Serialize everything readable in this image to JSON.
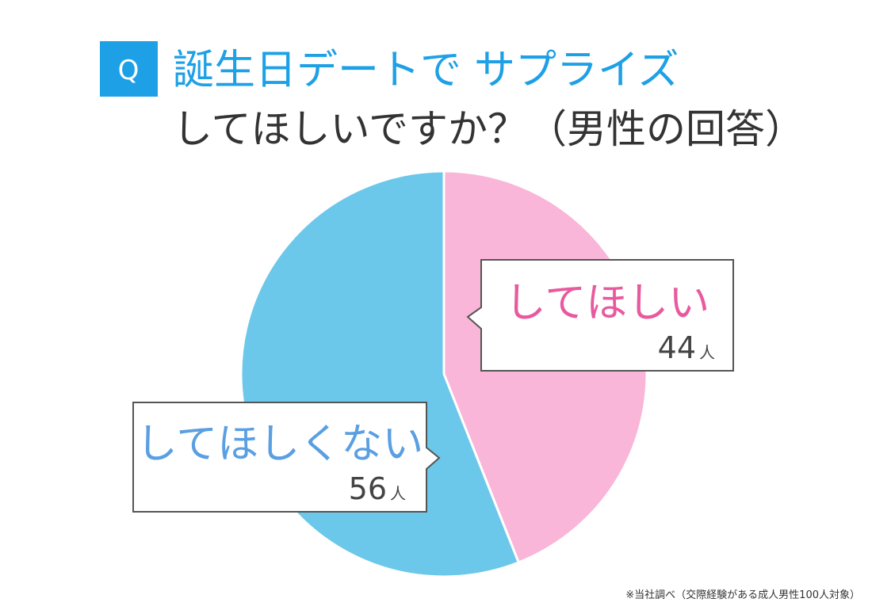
{
  "chart_data": {
    "type": "pie",
    "badge": "Q",
    "title": [
      "誕生日デートで",
      "サプライズ",
      "してほしいですか？（男性の回答）"
    ],
    "categories": [
      "してほしい",
      "してほしくない"
    ],
    "values": [
      44,
      56
    ],
    "unit": "人",
    "colors": [
      "#f9b6d8",
      "#6cc8ea"
    ],
    "label_colors": [
      "#e85a9e",
      "#5a9fe2"
    ],
    "note": "※当社調べ（交際経験がある成人男性100人対象）"
  }
}
